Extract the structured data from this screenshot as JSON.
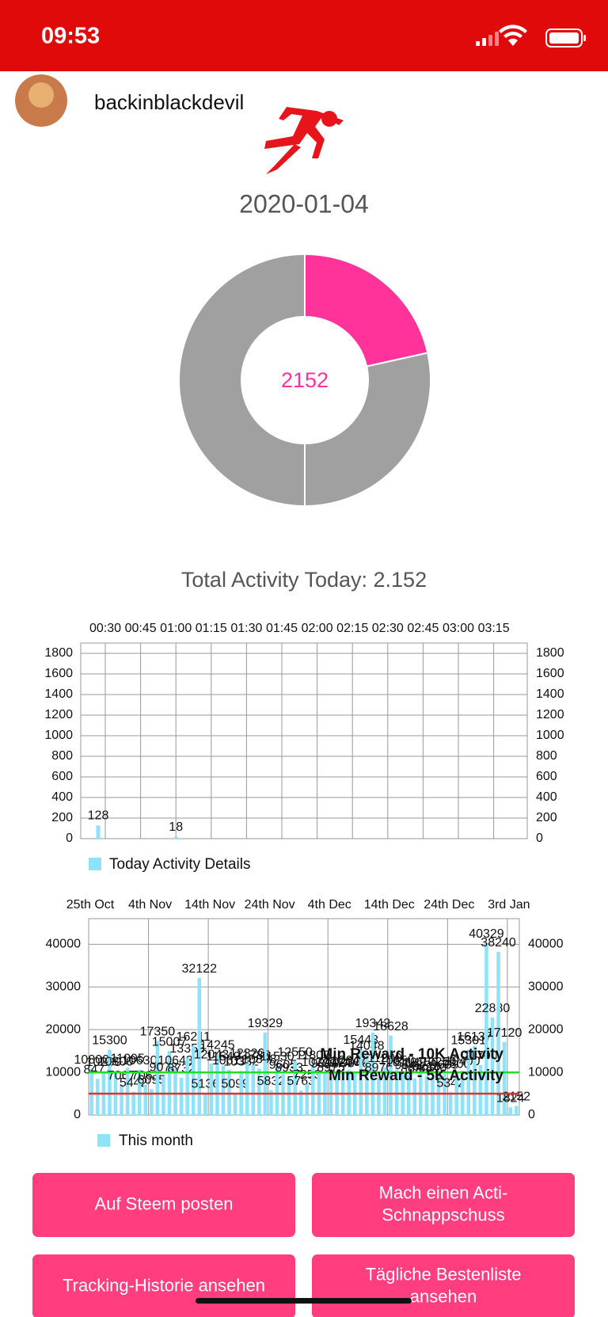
{
  "status_bar": {
    "time": "09:53"
  },
  "header": {
    "username": "backinblackdevil"
  },
  "date": "2020-01-04",
  "donut": {
    "values": [
      2152,
      2848,
      5000
    ],
    "colors": [
      "#ff3399",
      "#a0a0a0",
      "#a0a0a0"
    ]
  },
  "total_text": "Total Activity Today: 2.152",
  "today_chart": {
    "categories": [
      "00:30",
      "00:45",
      "01:00",
      "01:15",
      "01:30",
      "01:45",
      "02:00",
      "02:15",
      "02:30",
      "02:45",
      "03:00",
      "03:15"
    ],
    "values": [
      128,
      null,
      18,
      null,
      null,
      null,
      null,
      null,
      null,
      null,
      null,
      null
    ],
    "color": "#8fe3f8",
    "ylim": [
      0,
      1900
    ],
    "yticks": [
      0,
      200,
      400,
      600,
      800,
      1000,
      1200,
      1400,
      1600,
      1800
    ],
    "legend": "Today Activity Details"
  },
  "month_chart": {
    "xtick_labels": [
      "25th Oct",
      "4th Nov",
      "14th Nov",
      "24th Nov",
      "4th Dec",
      "14th Dec",
      "24th Dec",
      "3rd Jan"
    ],
    "values": [
      10800,
      8477,
      10200,
      15300,
      10300,
      7067,
      11095,
      5442,
      10630,
      7063,
      6095,
      17350,
      9073,
      15007,
      10643,
      8732,
      13353,
      16211,
      32122,
      5136,
      12043,
      14245,
      11549,
      10611,
      5099,
      10332,
      12320,
      11785,
      10898,
      19329,
      5832,
      11530,
      9605,
      8933,
      12550,
      5763,
      7253,
      11800,
      10277,
      9890,
      8975,
      9974,
      10230,
      10640,
      9940,
      15443,
      14048,
      19342,
      8970,
      11200,
      18628,
      10650,
      10114,
      9542,
      8620,
      10150,
      9210,
      8840,
      10250,
      9609,
      5342,
      9800,
      10400,
      15301,
      16137,
      11700,
      40329,
      22880,
      38240,
      17120,
      1824,
      2152
    ],
    "color": "#8fe3f8",
    "ylim": [
      0,
      46000
    ],
    "yticks": [
      0,
      10000,
      20000,
      30000,
      40000
    ],
    "lines": [
      {
        "value": 10000,
        "label": "Min Reward - 10K Activity",
        "color": "#22dd22"
      },
      {
        "value": 5000,
        "label": "Min Reward - 5K Activity",
        "color": "#e03030"
      }
    ],
    "legend": "This month"
  },
  "buttons": [
    [
      "Auf Steem posten"
    ],
    [
      "Mach einen Acti-",
      "Schnappschuss"
    ],
    [
      "Tracking-Historie ansehen"
    ],
    [
      "Tägliche Bestenliste",
      "ansehen"
    ]
  ]
}
